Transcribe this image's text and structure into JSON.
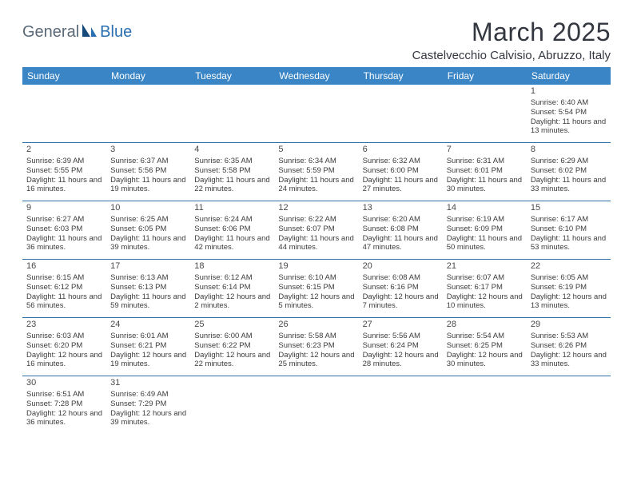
{
  "logo": {
    "part1": "General",
    "part2": "Blue"
  },
  "title": "March 2025",
  "subtitle": "Castelvecchio Calvisio, Abruzzo, Italy",
  "colors": {
    "header_bg": "#3a85c6",
    "header_text": "#ffffff",
    "divider": "#2f6fa8",
    "text": "#3c3c3c",
    "title_text": "#333740",
    "logo_gray": "#5a6a78",
    "logo_blue": "#2a6fb0",
    "bg": "#ffffff"
  },
  "day_names": [
    "Sunday",
    "Monday",
    "Tuesday",
    "Wednesday",
    "Thursday",
    "Friday",
    "Saturday"
  ],
  "labels": {
    "sunrise": "Sunrise:",
    "sunset": "Sunset:",
    "daylight": "Daylight:"
  },
  "weeks": [
    [
      null,
      null,
      null,
      null,
      null,
      null,
      {
        "n": "1",
        "sr": "6:40 AM",
        "ss": "5:54 PM",
        "dl": "11 hours and 13 minutes."
      }
    ],
    [
      {
        "n": "2",
        "sr": "6:39 AM",
        "ss": "5:55 PM",
        "dl": "11 hours and 16 minutes."
      },
      {
        "n": "3",
        "sr": "6:37 AM",
        "ss": "5:56 PM",
        "dl": "11 hours and 19 minutes."
      },
      {
        "n": "4",
        "sr": "6:35 AM",
        "ss": "5:58 PM",
        "dl": "11 hours and 22 minutes."
      },
      {
        "n": "5",
        "sr": "6:34 AM",
        "ss": "5:59 PM",
        "dl": "11 hours and 24 minutes."
      },
      {
        "n": "6",
        "sr": "6:32 AM",
        "ss": "6:00 PM",
        "dl": "11 hours and 27 minutes."
      },
      {
        "n": "7",
        "sr": "6:31 AM",
        "ss": "6:01 PM",
        "dl": "11 hours and 30 minutes."
      },
      {
        "n": "8",
        "sr": "6:29 AM",
        "ss": "6:02 PM",
        "dl": "11 hours and 33 minutes."
      }
    ],
    [
      {
        "n": "9",
        "sr": "6:27 AM",
        "ss": "6:03 PM",
        "dl": "11 hours and 36 minutes."
      },
      {
        "n": "10",
        "sr": "6:25 AM",
        "ss": "6:05 PM",
        "dl": "11 hours and 39 minutes."
      },
      {
        "n": "11",
        "sr": "6:24 AM",
        "ss": "6:06 PM",
        "dl": "11 hours and 42 minutes."
      },
      {
        "n": "12",
        "sr": "6:22 AM",
        "ss": "6:07 PM",
        "dl": "11 hours and 44 minutes."
      },
      {
        "n": "13",
        "sr": "6:20 AM",
        "ss": "6:08 PM",
        "dl": "11 hours and 47 minutes."
      },
      {
        "n": "14",
        "sr": "6:19 AM",
        "ss": "6:09 PM",
        "dl": "11 hours and 50 minutes."
      },
      {
        "n": "15",
        "sr": "6:17 AM",
        "ss": "6:10 PM",
        "dl": "11 hours and 53 minutes."
      }
    ],
    [
      {
        "n": "16",
        "sr": "6:15 AM",
        "ss": "6:12 PM",
        "dl": "11 hours and 56 minutes."
      },
      {
        "n": "17",
        "sr": "6:13 AM",
        "ss": "6:13 PM",
        "dl": "11 hours and 59 minutes."
      },
      {
        "n": "18",
        "sr": "6:12 AM",
        "ss": "6:14 PM",
        "dl": "12 hours and 2 minutes."
      },
      {
        "n": "19",
        "sr": "6:10 AM",
        "ss": "6:15 PM",
        "dl": "12 hours and 5 minutes."
      },
      {
        "n": "20",
        "sr": "6:08 AM",
        "ss": "6:16 PM",
        "dl": "12 hours and 7 minutes."
      },
      {
        "n": "21",
        "sr": "6:07 AM",
        "ss": "6:17 PM",
        "dl": "12 hours and 10 minutes."
      },
      {
        "n": "22",
        "sr": "6:05 AM",
        "ss": "6:19 PM",
        "dl": "12 hours and 13 minutes."
      }
    ],
    [
      {
        "n": "23",
        "sr": "6:03 AM",
        "ss": "6:20 PM",
        "dl": "12 hours and 16 minutes."
      },
      {
        "n": "24",
        "sr": "6:01 AM",
        "ss": "6:21 PM",
        "dl": "12 hours and 19 minutes."
      },
      {
        "n": "25",
        "sr": "6:00 AM",
        "ss": "6:22 PM",
        "dl": "12 hours and 22 minutes."
      },
      {
        "n": "26",
        "sr": "5:58 AM",
        "ss": "6:23 PM",
        "dl": "12 hours and 25 minutes."
      },
      {
        "n": "27",
        "sr": "5:56 AM",
        "ss": "6:24 PM",
        "dl": "12 hours and 28 minutes."
      },
      {
        "n": "28",
        "sr": "5:54 AM",
        "ss": "6:25 PM",
        "dl": "12 hours and 30 minutes."
      },
      {
        "n": "29",
        "sr": "5:53 AM",
        "ss": "6:26 PM",
        "dl": "12 hours and 33 minutes."
      }
    ],
    [
      {
        "n": "30",
        "sr": "6:51 AM",
        "ss": "7:28 PM",
        "dl": "12 hours and 36 minutes."
      },
      {
        "n": "31",
        "sr": "6:49 AM",
        "ss": "7:29 PM",
        "dl": "12 hours and 39 minutes."
      },
      null,
      null,
      null,
      null,
      null
    ]
  ]
}
